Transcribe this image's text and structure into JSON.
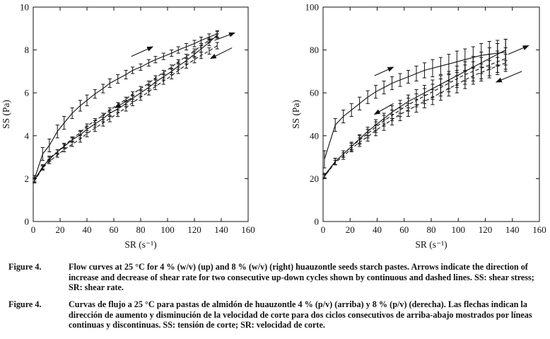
{
  "chart_data": [
    {
      "type": "line",
      "title": "",
      "xlabel": "SR (s⁻¹)",
      "ylabel": "SS (Pa)",
      "xlim": [
        0,
        160
      ],
      "ylim": [
        0,
        10
      ],
      "xticks": [
        "0",
        "20",
        "40",
        "60",
        "80",
        "100",
        "120",
        "140",
        "160"
      ],
      "yticks": [
        "0",
        "2",
        "4",
        "6",
        "8",
        "10"
      ],
      "grid": false,
      "series": [
        {
          "style": "solid-up",
          "x": [
            1,
            7,
            12,
            18,
            23,
            29,
            35,
            40,
            46,
            52,
            57,
            63,
            69,
            74,
            80,
            86,
            91,
            97,
            103,
            108,
            114,
            120,
            125,
            131,
            137
          ],
          "y": [
            2.0,
            3.15,
            3.55,
            4.2,
            4.6,
            5.05,
            5.4,
            5.65,
            5.95,
            6.2,
            6.45,
            6.65,
            6.85,
            7.05,
            7.2,
            7.4,
            7.55,
            7.7,
            7.85,
            8.0,
            8.15,
            8.3,
            8.45,
            8.6,
            8.75
          ],
          "err": [
            0.15,
            0.3,
            0.3,
            0.3,
            0.3,
            0.25,
            0.25,
            0.25,
            0.2,
            0.2,
            0.2,
            0.2,
            0.2,
            0.15,
            0.15,
            0.15,
            0.15,
            0.15,
            0.15,
            0.15,
            0.15,
            0.15,
            0.15,
            0.15,
            0.15
          ]
        },
        {
          "style": "solid-down",
          "x": [
            137,
            131,
            125,
            120,
            114,
            108,
            103,
            97,
            91,
            86,
            80,
            74,
            69,
            63,
            57,
            52,
            46,
            40,
            35,
            29,
            23,
            18,
            12,
            7,
            1
          ],
          "y": [
            8.7,
            8.35,
            8.05,
            7.8,
            7.5,
            7.25,
            7.0,
            6.75,
            6.5,
            6.25,
            6.0,
            5.75,
            5.5,
            5.25,
            5.05,
            4.8,
            4.55,
            4.3,
            4.05,
            3.8,
            3.5,
            3.25,
            2.9,
            2.55,
            1.95
          ],
          "err": [
            0.15,
            0.15,
            0.15,
            0.15,
            0.15,
            0.15,
            0.15,
            0.15,
            0.15,
            0.15,
            0.15,
            0.15,
            0.15,
            0.15,
            0.15,
            0.15,
            0.15,
            0.15,
            0.15,
            0.1,
            0.1,
            0.1,
            0.1,
            0.1,
            0.1
          ]
        },
        {
          "style": "dashed-up",
          "x": [
            1,
            7,
            12,
            18,
            23,
            29,
            35,
            40,
            46,
            52,
            57,
            63,
            69,
            74,
            80,
            86,
            91,
            97,
            103,
            108,
            114,
            120,
            125,
            131,
            137
          ],
          "y": [
            1.9,
            2.5,
            2.95,
            3.25,
            3.55,
            3.85,
            4.15,
            4.45,
            4.7,
            4.95,
            5.2,
            5.45,
            5.7,
            5.95,
            6.2,
            6.45,
            6.7,
            6.95,
            7.2,
            7.45,
            7.7,
            7.95,
            8.2,
            8.45,
            8.65
          ],
          "err": [
            0.1,
            0.1,
            0.1,
            0.1,
            0.1,
            0.1,
            0.1,
            0.1,
            0.1,
            0.1,
            0.1,
            0.1,
            0.1,
            0.1,
            0.1,
            0.1,
            0.1,
            0.1,
            0.1,
            0.1,
            0.1,
            0.1,
            0.1,
            0.1,
            0.1
          ]
        },
        {
          "style": "dashed-down",
          "x": [
            137,
            131,
            125,
            120,
            114,
            108,
            103,
            97,
            91,
            86,
            80,
            74,
            69,
            63,
            57,
            52,
            46,
            40,
            35,
            29,
            23,
            18,
            12,
            7,
            1
          ],
          "y": [
            8.2,
            7.95,
            7.75,
            7.55,
            7.3,
            7.05,
            6.8,
            6.55,
            6.3,
            6.05,
            5.8,
            5.55,
            5.3,
            5.05,
            4.8,
            4.6,
            4.35,
            4.1,
            3.85,
            3.6,
            3.35,
            3.1,
            2.8,
            2.5,
            1.9
          ],
          "err": [
            0.15,
            0.15,
            0.15,
            0.15,
            0.15,
            0.15,
            0.15,
            0.15,
            0.15,
            0.15,
            0.15,
            0.15,
            0.15,
            0.15,
            0.15,
            0.15,
            0.15,
            0.15,
            0.15,
            0.1,
            0.1,
            0.1,
            0.1,
            0.1,
            0.1
          ]
        }
      ],
      "arrows": [
        {
          "direction": "up",
          "from": [
            73,
            7.7
          ],
          "to": [
            89,
            8.15
          ]
        },
        {
          "direction": "down",
          "from": [
            73,
            5.75
          ],
          "to": [
            61,
            5.3
          ]
        },
        {
          "direction": "up",
          "from": [
            135,
            8.45
          ],
          "to": [
            150,
            8.8
          ]
        },
        {
          "direction": "down",
          "from": [
            148,
            8.1
          ],
          "to": [
            132,
            7.6
          ]
        }
      ]
    },
    {
      "type": "line",
      "title": "",
      "xlabel": "SR (s⁻¹)",
      "ylabel": "SS (Pa)",
      "xlim": [
        0,
        160
      ],
      "ylim": [
        0,
        100
      ],
      "xticks": [
        "0",
        "20",
        "40",
        "60",
        "80",
        "100",
        "120",
        "140",
        "160"
      ],
      "yticks": [
        "0",
        "20",
        "40",
        "60",
        "80",
        "100"
      ],
      "grid": false,
      "series": [
        {
          "style": "solid-up",
          "x": [
            1,
            9,
            15,
            21,
            27,
            33,
            39,
            45,
            51,
            57,
            63,
            69,
            75,
            81,
            87,
            93,
            99,
            105,
            111,
            117,
            123,
            129,
            135
          ],
          "y": [
            29,
            45,
            49,
            52,
            55,
            58,
            60.5,
            62.5,
            64.5,
            66,
            67.5,
            69,
            70.5,
            71.5,
            72.5,
            73.5,
            74.5,
            75.5,
            76.5,
            77.5,
            78,
            78.5,
            79
          ],
          "err": [
            4,
            3,
            3,
            3,
            3,
            3,
            3,
            3,
            3,
            3,
            3,
            3.5,
            3.5,
            4,
            4,
            4.5,
            5,
            5,
            5,
            5.5,
            6,
            6,
            6
          ]
        },
        {
          "style": "solid-down",
          "x": [
            135,
            129,
            123,
            117,
            111,
            105,
            99,
            93,
            87,
            81,
            75,
            69,
            63,
            57,
            51,
            45,
            39,
            33,
            27,
            21,
            15,
            9,
            1
          ],
          "y": [
            80,
            78,
            76,
            74,
            72,
            70,
            68,
            66,
            64,
            62,
            60,
            58,
            56,
            53.5,
            51,
            48,
            45,
            42,
            38.5,
            35,
            31.5,
            28,
            21.5
          ],
          "err": [
            5,
            5,
            5,
            5,
            5,
            4.5,
            4.5,
            4,
            4,
            4,
            3.5,
            3.5,
            3,
            3,
            3,
            2.5,
            2.5,
            2,
            2,
            1.5,
            1.5,
            1.5,
            1
          ]
        },
        {
          "style": "dashed-up",
          "x": [
            1,
            9,
            15,
            21,
            27,
            33,
            39,
            45,
            51,
            57,
            63,
            69,
            75,
            81,
            87,
            93,
            99,
            105,
            111,
            117,
            123,
            129,
            135
          ],
          "y": [
            21,
            28,
            31.5,
            35,
            38,
            41,
            44,
            47,
            49.5,
            52,
            54.5,
            56.5,
            58.5,
            60.5,
            62.5,
            64.5,
            66.5,
            68.5,
            70,
            71.5,
            73,
            74.5,
            76
          ],
          "err": [
            1,
            1.5,
            1.5,
            2,
            2,
            2,
            2.5,
            2.5,
            2.5,
            3,
            3,
            3,
            3.5,
            3.5,
            4,
            4,
            4,
            4.5,
            4.5,
            5,
            5,
            5,
            5
          ]
        },
        {
          "style": "dashed-down",
          "x": [
            135,
            129,
            123,
            117,
            111,
            105,
            99,
            93,
            87,
            81,
            75,
            69,
            63,
            57,
            51,
            45,
            39,
            33,
            27,
            21,
            15,
            9,
            1
          ],
          "y": [
            74,
            72.5,
            71,
            69.5,
            68,
            66,
            64,
            62,
            60,
            58,
            56,
            54,
            52,
            50,
            47.5,
            45,
            42.5,
            39.5,
            37,
            34,
            30.5,
            27.5,
            21
          ],
          "err": [
            4,
            4,
            4,
            4,
            4,
            4,
            4,
            3.5,
            3.5,
            3.5,
            3,
            3,
            3,
            3,
            2.5,
            2.5,
            2.5,
            2,
            2,
            1.5,
            1.5,
            1,
            1
          ]
        }
      ],
      "arrows": [
        {
          "direction": "up",
          "from": [
            38,
            68
          ],
          "to": [
            52,
            72
          ]
        },
        {
          "direction": "down",
          "from": [
            52,
            55
          ],
          "to": [
            38,
            50
          ]
        },
        {
          "direction": "up",
          "from": [
            137,
            78
          ],
          "to": [
            152,
            82
          ]
        },
        {
          "direction": "down",
          "from": [
            147,
            70
          ],
          "to": [
            128,
            65
          ]
        }
      ]
    }
  ],
  "captions": {
    "en": {
      "label": "Figure 4.",
      "text": "Flow curves at 25 °C for 4 % (w/v) (up) and 8 % (w/v) (right) huauzontle seeds starch pastes. Arrows indicate the direction of increase and decrease of shear rate for two consecutive up-down cycles shown by continuous and dashed lines. SS: shear stress; SR: shear rate."
    },
    "es": {
      "label": "Figure 4.",
      "text": "Curvas de flujo a 25 °C para pastas de almidón de huauzontle 4 % (p/v) (arriba) y 8 % (p/v) (derecha). Las flechas indican la dirección de aumento y disminución de la velocidad de corte para dos ciclos consecutivos de arriba-abajo mostrados por líneas continuas y discontinuas. SS: tensión de corte; SR: velocidad de corte."
    }
  }
}
